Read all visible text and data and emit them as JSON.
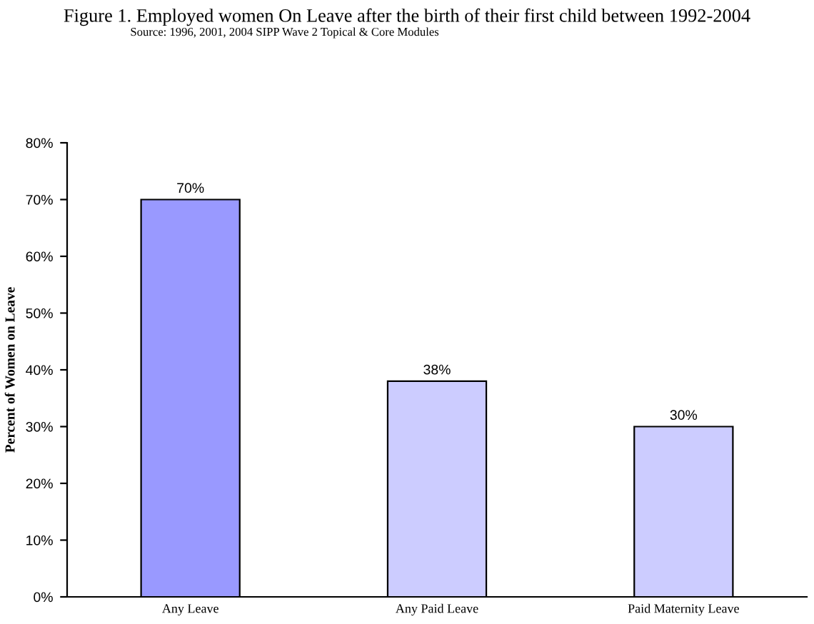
{
  "chart_data": {
    "type": "bar",
    "title": "Figure 1. Employed women On Leave after the birth of their first child between 1992-2004",
    "subtitle": "Source: 1996, 2001, 2004 SIPP Wave 2 Topical & Core Modules",
    "ylabel": "Percent of Women on Leave",
    "categories": [
      "Any Leave",
      "Any Paid Leave",
      "Paid Maternity Leave"
    ],
    "values": [
      70,
      38,
      30
    ],
    "colors": [
      "#9999ff",
      "#ccccff",
      "#ccccff"
    ],
    "value_labels": [
      "70%",
      "38%",
      "30%"
    ],
    "ylim": [
      0,
      80
    ],
    "yticks": [
      {
        "value": 0,
        "label": "0%"
      },
      {
        "value": 10,
        "label": "10%"
      },
      {
        "value": 20,
        "label": "20%"
      },
      {
        "value": 30,
        "label": "30%"
      },
      {
        "value": 40,
        "label": "40%"
      },
      {
        "value": 50,
        "label": "50%"
      },
      {
        "value": 60,
        "label": "60%"
      },
      {
        "value": 70,
        "label": "70%"
      },
      {
        "value": 80,
        "label": "80%"
      }
    ],
    "grid": false,
    "legend": false
  }
}
